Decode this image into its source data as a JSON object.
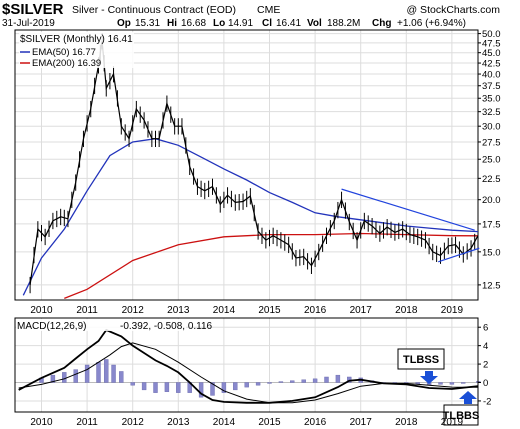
{
  "header": {
    "symbol": "$SILVER",
    "description": "Silver - Continuous Contract (EOD)",
    "exchange": "CME",
    "copyright": "@ StockCharts.com",
    "date": "31-Jul-2019",
    "op_label": "Op",
    "op": "15.31",
    "hi_label": "Hi",
    "hi": "16.68",
    "lo_label": "Lo",
    "lo": "14.91",
    "cl_label": "Cl",
    "cl": "16.41",
    "vol_label": "Vol",
    "vol": "188.2M",
    "chg_label": "Chg",
    "chg": "+1.06 (+6.94%)"
  },
  "legend": {
    "main": "$SILVER (Monthly) 16.41",
    "ema50": "EMA(50) 16.77",
    "ema200": "EMA(200) 16.39"
  },
  "macd": {
    "label": "MACD(12,26,9)",
    "values": "-0.392, -0.508, 0.116"
  },
  "annotations": {
    "tlbss": "TLBSS",
    "tlbbs": "TLBBS"
  },
  "colors": {
    "price": "#000000",
    "ema50": "#2233bb",
    "ema200": "#cc1111",
    "trendline": "#2244dd",
    "histogram": "#8888cc",
    "arrow": "#1a4fd6",
    "grid": "#dddddd",
    "panel_border": "#000000"
  },
  "chart_data": [
    {
      "type": "ohlc",
      "title": "$SILVER (Monthly)",
      "x_ticks": [
        "2010",
        "2011",
        "2012",
        "2013",
        "2014",
        "2015",
        "2016",
        "2017",
        "2018",
        "2019"
      ],
      "y_ticks": [
        "12.5",
        "15.0",
        "17.5",
        "20.0",
        "22.5",
        "25.0",
        "27.5",
        "30.0",
        "32.5",
        "35.0",
        "37.5",
        "40.0",
        "42.5",
        "45.0",
        "47.5",
        "50.0"
      ],
      "y_scale": "log",
      "ylim": [
        11.5,
        51
      ],
      "grid": true,
      "price_path": [
        [
          2009.75,
          12.5
        ],
        [
          2009.92,
          17
        ],
        [
          2010.08,
          16.3
        ],
        [
          2010.25,
          17.8
        ],
        [
          2010.42,
          18.2
        ],
        [
          2010.58,
          18
        ],
        [
          2010.75,
          22
        ],
        [
          2010.92,
          28
        ],
        [
          2011.08,
          33
        ],
        [
          2011.25,
          42
        ],
        [
          2011.33,
          48
        ],
        [
          2011.42,
          37
        ],
        [
          2011.58,
          40
        ],
        [
          2011.75,
          30
        ],
        [
          2011.92,
          28
        ],
        [
          2012.08,
          33
        ],
        [
          2012.25,
          31
        ],
        [
          2012.42,
          28
        ],
        [
          2012.58,
          28
        ],
        [
          2012.75,
          34
        ],
        [
          2012.92,
          30
        ],
        [
          2013.08,
          30
        ],
        [
          2013.25,
          24
        ],
        [
          2013.42,
          21.5
        ],
        [
          2013.58,
          21
        ],
        [
          2013.75,
          21.5
        ],
        [
          2013.92,
          19.5
        ],
        [
          2014.08,
          20.5
        ],
        [
          2014.25,
          19.7
        ],
        [
          2014.42,
          19.8
        ],
        [
          2014.58,
          20.4
        ],
        [
          2014.75,
          16.8
        ],
        [
          2014.92,
          16
        ],
        [
          2015.08,
          16.4
        ],
        [
          2015.25,
          16
        ],
        [
          2015.42,
          15.6
        ],
        [
          2015.58,
          14.5
        ],
        [
          2015.75,
          14.6
        ],
        [
          2015.92,
          13.9
        ],
        [
          2016.08,
          15
        ],
        [
          2016.25,
          16.4
        ],
        [
          2016.42,
          17.8
        ],
        [
          2016.58,
          20
        ],
        [
          2016.75,
          17.7
        ],
        [
          2016.92,
          16
        ],
        [
          2017.08,
          17.8
        ],
        [
          2017.25,
          17.3
        ],
        [
          2017.42,
          16.6
        ],
        [
          2017.58,
          17.2
        ],
        [
          2017.75,
          16.7
        ],
        [
          2017.92,
          17
        ],
        [
          2018.08,
          16.5
        ],
        [
          2018.25,
          16.3
        ],
        [
          2018.42,
          16
        ],
        [
          2018.58,
          15
        ],
        [
          2018.75,
          14.7
        ],
        [
          2018.92,
          15.5
        ],
        [
          2019.08,
          15.6
        ],
        [
          2019.25,
          14.8
        ],
        [
          2019.42,
          15.3
        ],
        [
          2019.58,
          16.41
        ]
      ],
      "ema50": [
        [
          2009.6,
          11.8
        ],
        [
          2010.0,
          14.5
        ],
        [
          2010.5,
          17
        ],
        [
          2011.0,
          21
        ],
        [
          2011.5,
          25.5
        ],
        [
          2012.0,
          27.5
        ],
        [
          2012.5,
          28
        ],
        [
          2013.0,
          27
        ],
        [
          2013.5,
          25.3
        ],
        [
          2014.0,
          23.7
        ],
        [
          2014.5,
          22.3
        ],
        [
          2015.0,
          20.8
        ],
        [
          2015.5,
          19.7
        ],
        [
          2016.0,
          18.6
        ],
        [
          2016.5,
          18.2
        ],
        [
          2017.0,
          17.9
        ],
        [
          2017.5,
          17.6
        ],
        [
          2018.0,
          17.3
        ],
        [
          2018.5,
          17.1
        ],
        [
          2019.0,
          16.9
        ],
        [
          2019.58,
          16.77
        ]
      ],
      "ema200": [
        [
          2010.5,
          11.6
        ],
        [
          2011.0,
          12.2
        ],
        [
          2012.0,
          14.3
        ],
        [
          2013.0,
          15.6
        ],
        [
          2014.0,
          16.3
        ],
        [
          2015.0,
          16.5
        ],
        [
          2016.0,
          16.5
        ],
        [
          2017.0,
          16.6
        ],
        [
          2018.0,
          16.5
        ],
        [
          2019.0,
          16.4
        ],
        [
          2019.58,
          16.39
        ]
      ],
      "trendlines": [
        [
          [
            2016.58,
            21.2
          ],
          [
            2019.5,
            16.9
          ]
        ],
        [
          [
            2018.7,
            14.2
          ],
          [
            2019.6,
            15.3
          ]
        ]
      ]
    },
    {
      "type": "macd",
      "title": "MACD(12,26,9)",
      "y_ticks": [
        "6",
        "4",
        "2",
        "0",
        "-2"
      ],
      "ylim": [
        -3.2,
        7
      ],
      "grid": true,
      "macd": [
        [
          2009.5,
          -0.8
        ],
        [
          2010.0,
          0.5
        ],
        [
          2010.5,
          1.6
        ],
        [
          2010.75,
          2.6
        ],
        [
          2011.0,
          3.6
        ],
        [
          2011.25,
          4.5
        ],
        [
          2011.42,
          5.7
        ],
        [
          2011.75,
          5.0
        ],
        [
          2012.0,
          4.0
        ],
        [
          2012.5,
          2.4
        ],
        [
          2012.75,
          1.8
        ],
        [
          2013.0,
          1.1
        ],
        [
          2013.25,
          0.0
        ],
        [
          2013.5,
          -1.2
        ],
        [
          2013.75,
          -1.9
        ],
        [
          2014.0,
          -2.1
        ],
        [
          2014.5,
          -2.2
        ],
        [
          2015.0,
          -2.2
        ],
        [
          2015.5,
          -2.0
        ],
        [
          2016.0,
          -1.6
        ],
        [
          2016.5,
          -0.5
        ],
        [
          2016.75,
          0.2
        ],
        [
          2017.0,
          0.3
        ],
        [
          2017.5,
          -0.1
        ],
        [
          2018.0,
          -0.2
        ],
        [
          2018.5,
          -0.6
        ],
        [
          2019.0,
          -0.7
        ],
        [
          2019.58,
          -0.39
        ]
      ],
      "signal": [
        [
          2009.5,
          -0.6
        ],
        [
          2010.0,
          -0.2
        ],
        [
          2010.5,
          0.4
        ],
        [
          2011.0,
          1.4
        ],
        [
          2011.5,
          3.0
        ],
        [
          2011.75,
          3.9
        ],
        [
          2012.0,
          4.3
        ],
        [
          2012.5,
          3.6
        ],
        [
          2013.0,
          2.2
        ],
        [
          2013.5,
          0.6
        ],
        [
          2014.0,
          -0.9
        ],
        [
          2014.5,
          -1.8
        ],
        [
          2015.0,
          -2.2
        ],
        [
          2015.5,
          -2.2
        ],
        [
          2016.0,
          -1.9
        ],
        [
          2016.5,
          -1.2
        ],
        [
          2017.0,
          -0.4
        ],
        [
          2017.5,
          -0.1
        ],
        [
          2018.0,
          -0.1
        ],
        [
          2018.5,
          -0.3
        ],
        [
          2019.0,
          -0.5
        ],
        [
          2019.58,
          -0.51
        ]
      ],
      "histogram": [
        [
          2010.0,
          0.5
        ],
        [
          2010.25,
          0.8
        ],
        [
          2010.5,
          1.1
        ],
        [
          2010.75,
          1.4
        ],
        [
          2011.0,
          1.9
        ],
        [
          2011.25,
          2.2
        ],
        [
          2011.42,
          2.5
        ],
        [
          2011.58,
          1.9
        ],
        [
          2011.75,
          1.2
        ],
        [
          2012.0,
          -0.3
        ],
        [
          2012.25,
          -0.8
        ],
        [
          2012.5,
          -1.1
        ],
        [
          2012.75,
          -1.0
        ],
        [
          2013.0,
          -1.1
        ],
        [
          2013.25,
          -1.1
        ],
        [
          2013.5,
          -1.6
        ],
        [
          2013.75,
          -1.4
        ],
        [
          2014.0,
          -1.1
        ],
        [
          2014.25,
          -0.8
        ],
        [
          2014.5,
          -0.5
        ],
        [
          2014.75,
          -0.3
        ],
        [
          2015.0,
          -0.1
        ],
        [
          2015.25,
          0.1
        ],
        [
          2015.5,
          0.2
        ],
        [
          2015.75,
          0.3
        ],
        [
          2016.0,
          0.4
        ],
        [
          2016.25,
          0.6
        ],
        [
          2016.5,
          0.8
        ],
        [
          2016.75,
          0.6
        ],
        [
          2017.0,
          0.5
        ],
        [
          2017.25,
          0.2
        ],
        [
          2017.5,
          0.0
        ],
        [
          2017.75,
          -0.1
        ],
        [
          2018.0,
          -0.1
        ],
        [
          2018.25,
          -0.2
        ],
        [
          2018.5,
          -0.3
        ],
        [
          2018.75,
          -0.2
        ],
        [
          2019.0,
          -0.2
        ],
        [
          2019.25,
          -0.1
        ],
        [
          2019.58,
          0.12
        ]
      ]
    }
  ]
}
